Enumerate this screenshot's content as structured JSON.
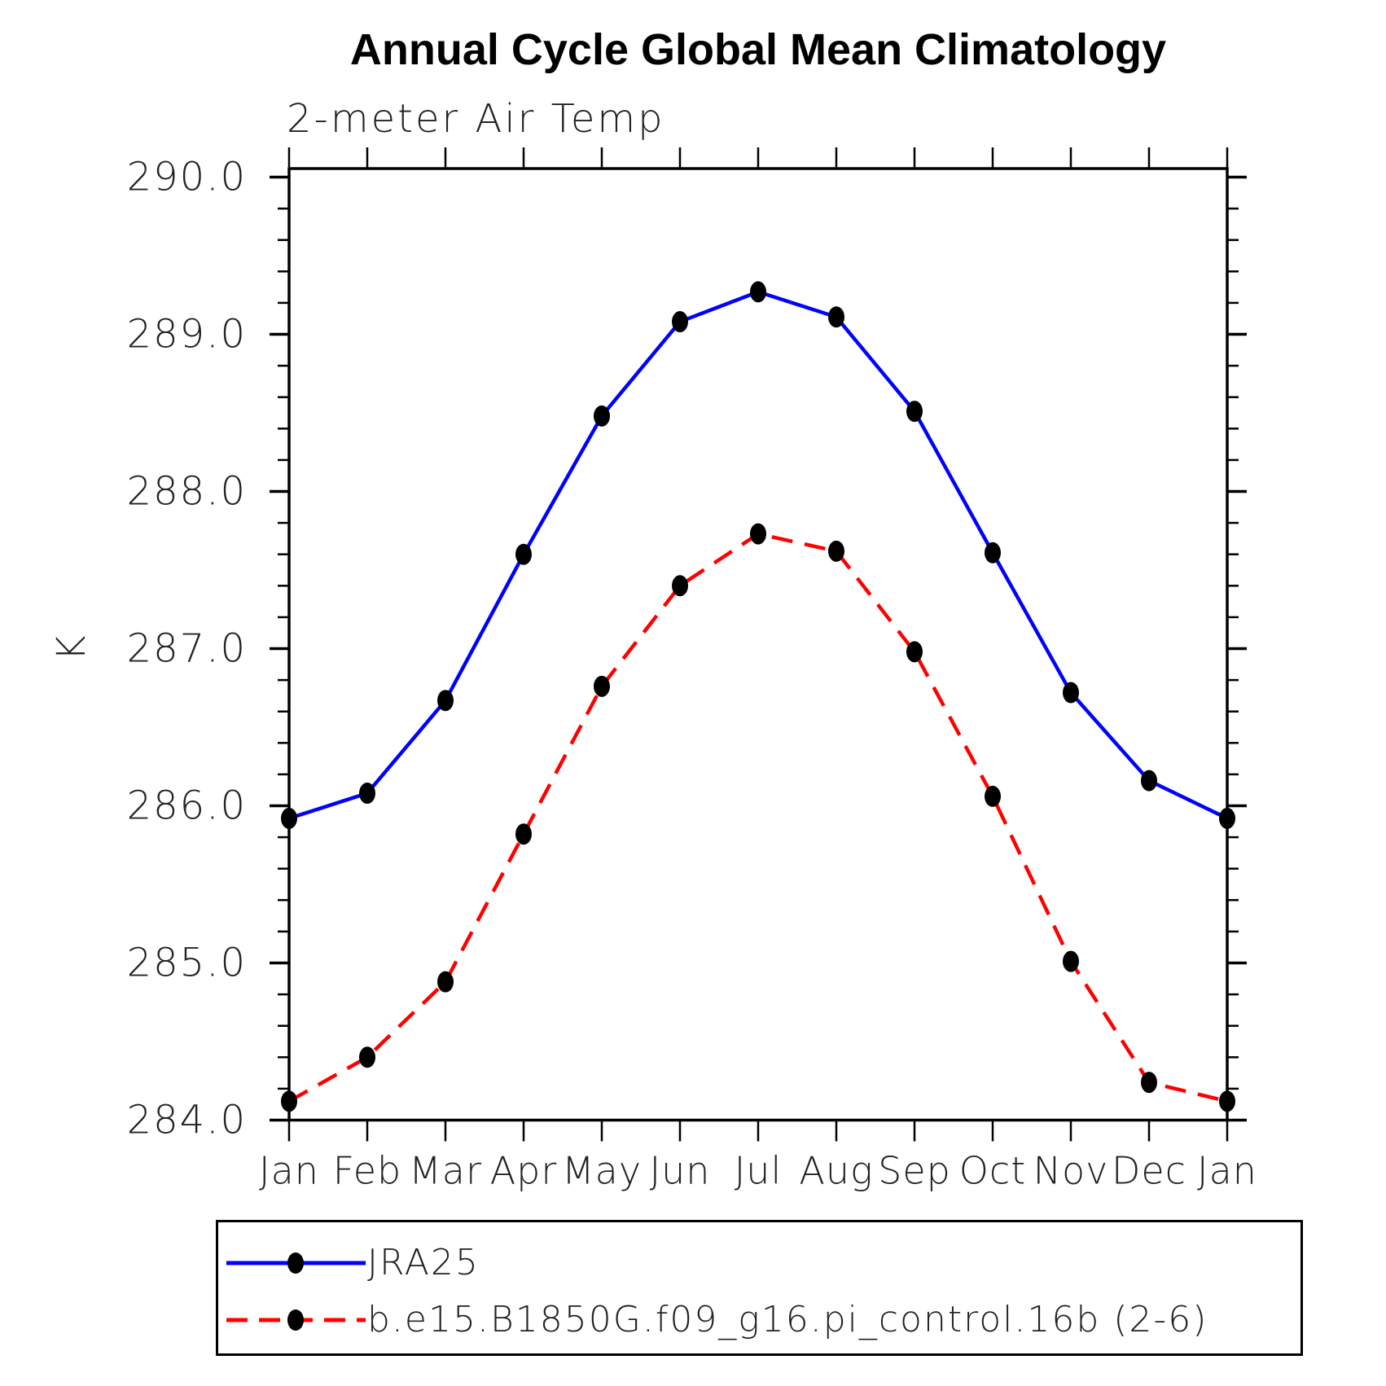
{
  "title": "Annual Cycle Global Mean Climatology",
  "subtitle": "2-meter Air Temp",
  "y_axis_title": "K",
  "colors": {
    "series1": "#0000ff",
    "series2": "#ff0000",
    "marker": "#000000",
    "axis": "#000000"
  },
  "legend": {
    "entries": [
      {
        "label": "JRA25",
        "line": "solid-blue",
        "marker": "black-dot"
      },
      {
        "label": "b.e15.B1850G.f09_g16.pi_control.16b (2-6)",
        "line": "dashed-red",
        "marker": "black-dot"
      }
    ]
  },
  "chart_data": {
    "type": "line",
    "title": "Annual Cycle Global Mean Climatology",
    "subtitle": "2-meter Air Temp",
    "xlabel": "",
    "ylabel": "K",
    "x_categories": [
      "Jan",
      "Feb",
      "Mar",
      "Apr",
      "May",
      "Jun",
      "Jul",
      "Aug",
      "Sep",
      "Oct",
      "Nov",
      "Dec",
      "Jan"
    ],
    "ylim": [
      284.0,
      290.0
    ],
    "ytick_major_interval": 1.0,
    "ytick_minor_interval": 0.2,
    "ytick_labels": [
      "290.0",
      "289.0",
      "288.0",
      "287.0",
      "286.0",
      "285.0",
      "284.0"
    ],
    "grid": false,
    "legend_position": "bottom",
    "series": [
      {
        "name": "JRA25",
        "color": "#0000ff",
        "line_style": "solid",
        "marker": "filled-black-circle",
        "values": [
          285.92,
          286.08,
          286.67,
          287.6,
          288.48,
          289.08,
          289.27,
          289.11,
          288.51,
          287.61,
          286.72,
          286.16,
          285.92
        ]
      },
      {
        "name": "b.e15.B1850G.f09_g16.pi_control.16b (2-6)",
        "color": "#ff0000",
        "line_style": "dashed",
        "marker": "filled-black-circle",
        "values": [
          284.12,
          284.4,
          284.88,
          285.82,
          286.76,
          287.4,
          287.73,
          287.62,
          286.98,
          286.06,
          285.01,
          284.24,
          284.12
        ]
      }
    ]
  }
}
